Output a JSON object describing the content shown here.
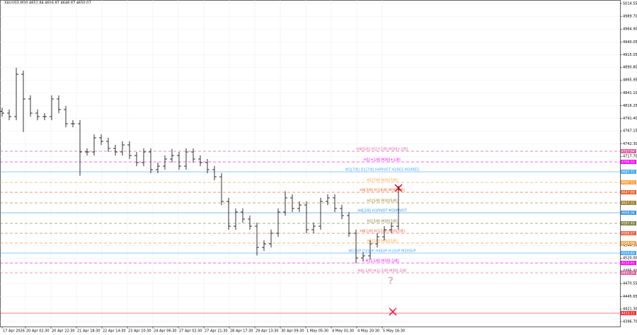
{
  "chart_data": {
    "type": "ohlc",
    "title": "XAUUSD,M30 4652.84 4656.87 4648.87 4650.07",
    "color": "#000000",
    "grid": true,
    "x": [
      0,
      1,
      2,
      3,
      4,
      5,
      6,
      7,
      8,
      9,
      10,
      11,
      12,
      13,
      14,
      15,
      16,
      17,
      18,
      19,
      20,
      21,
      22,
      23,
      24,
      25,
      26,
      27,
      28,
      29,
      30,
      31,
      32,
      33,
      34,
      35,
      36,
      37,
      38,
      39,
      40,
      41,
      42,
      43,
      44,
      45,
      46,
      47,
      48,
      49,
      50,
      51,
      52,
      53,
      54,
      55,
      56
    ],
    "open": [
      4805.0,
      4801.7,
      4794.9,
      4877.2,
      4829.2,
      4801.7,
      4794.9,
      4794.9,
      4829.2,
      4808.6,
      4781.1,
      4781.1,
      4726.2,
      4726.2,
      4753.7,
      4746.8,
      4733.1,
      4726.2,
      4739.9,
      4719.3,
      4705.6,
      4726.2,
      4691.9,
      4698.7,
      4712.5,
      4719.3,
      4698.7,
      4726.2,
      4712.5,
      4705.6,
      4691.9,
      4678.1,
      4630.1,
      4582.0,
      4609.5,
      4595.8,
      4582.0,
      4540.8,
      4547.7,
      4568.3,
      4609.5,
      4637.0,
      4616.4,
      4623.2,
      4575.2,
      4582.0,
      4630.1,
      4637.0,
      4616.4,
      4602.6,
      4568.3,
      4520.3,
      4524.4,
      4547.7,
      4561.4,
      4575.2,
      4582.0
    ],
    "high": [
      4812.0,
      4808.7,
      4890.0,
      4884.2,
      4836.2,
      4808.7,
      4801.9,
      4836.2,
      4836.2,
      4815.6,
      4788.1,
      4788.1,
      4733.2,
      4760.7,
      4760.7,
      4753.8,
      4740.1,
      4746.9,
      4746.9,
      4726.3,
      4733.2,
      4733.2,
      4705.7,
      4719.5,
      4732.0,
      4726.3,
      4733.2,
      4733.2,
      4719.5,
      4712.6,
      4698.9,
      4685.1,
      4637.1,
      4616.5,
      4616.5,
      4602.8,
      4589.0,
      4554.7,
      4575.3,
      4616.5,
      4650.0,
      4644.0,
      4630.2,
      4630.2,
      4589.0,
      4637.1,
      4644.0,
      4644.0,
      4623.4,
      4609.6,
      4575.3,
      4531.4,
      4554.7,
      4568.4,
      4582.2,
      4589.0,
      4660.4
    ],
    "low": [
      4794.7,
      4787.9,
      4787.9,
      4765.0,
      4794.7,
      4787.9,
      4787.9,
      4787.9,
      4801.6,
      4774.1,
      4774.1,
      4680.0,
      4719.2,
      4719.2,
      4739.8,
      4726.1,
      4719.2,
      4719.2,
      4712.3,
      4698.6,
      4698.6,
      4684.9,
      4684.9,
      4691.7,
      4705.5,
      4691.7,
      4691.7,
      4705.5,
      4698.6,
      4684.9,
      4671.1,
      4623.1,
      4575.0,
      4575.0,
      4588.8,
      4575.0,
      4525.0,
      4533.8,
      4540.7,
      4561.3,
      4602.5,
      4609.4,
      4609.4,
      4568.2,
      4568.2,
      4575.0,
      4623.1,
      4609.4,
      4595.6,
      4561.3,
      4510.0,
      4513.3,
      4517.4,
      4540.7,
      4554.4,
      4568.2,
      4575.0
    ],
    "close": [
      4801.7,
      4794.9,
      4877.2,
      4829.2,
      4801.7,
      4794.9,
      4794.9,
      4829.2,
      4808.6,
      4781.1,
      4781.1,
      4726.2,
      4726.2,
      4753.7,
      4746.8,
      4733.1,
      4726.2,
      4739.9,
      4719.3,
      4705.6,
      4726.2,
      4691.9,
      4698.7,
      4712.5,
      4719.3,
      4698.7,
      4726.2,
      4712.5,
      4705.6,
      4691.9,
      4678.1,
      4630.1,
      4582.0,
      4609.5,
      4595.8,
      4582.0,
      4540.8,
      4547.7,
      4568.3,
      4609.5,
      4637.0,
      4616.4,
      4623.2,
      4575.2,
      4582.0,
      4630.1,
      4637.0,
      4616.4,
      4602.6,
      4568.3,
      4520.3,
      4524.4,
      4547.7,
      4561.4,
      4575.2,
      4582.0,
      4653.4
    ],
    "xlim": [
      -0.3,
      87.3
    ],
    "xticks": [
      {
        "value": 0,
        "label": "17 Apr 2026"
      },
      {
        "value": 3.3,
        "label": "20 Apr 02:30"
      },
      {
        "value": 6.9,
        "label": "20 Apr 22:30"
      },
      {
        "value": 10.5,
        "label": "21 Apr 18:30"
      },
      {
        "value": 14.1,
        "label": "22 Apr 14:30"
      },
      {
        "value": 17.7,
        "label": "23 Apr 10:30"
      },
      {
        "value": 21.3,
        "label": "24 Apr 06:30"
      },
      {
        "value": 24.9,
        "label": "27 Apr 02:30"
      },
      {
        "value": 28.5,
        "label": "27 Apr 21:30"
      },
      {
        "value": 32.1,
        "label": "28 Apr 17:30"
      },
      {
        "value": 35.7,
        "label": "29 Apr 13:30"
      },
      {
        "value": 39.3,
        "label": "30 Apr 09:30"
      },
      {
        "value": 42.9,
        "label": "1 May 05:30"
      },
      {
        "value": 46.5,
        "label": "4 May 01:30"
      },
      {
        "value": 50.1,
        "label": "4 May 20:30"
      },
      {
        "value": 53.7,
        "label": "5 May 16:30"
      }
    ],
    "ylim": [
      4387.1,
      5021.4
    ],
    "yticks": [
      {
        "value": 5014.55,
        "label": "5014.55"
      },
      {
        "value": 4989.7,
        "label": "4989.70"
      },
      {
        "value": 4964.9,
        "label": "4964.90"
      },
      {
        "value": 4940.05,
        "label": "4940.05"
      },
      {
        "value": 4915.05,
        "label": "4915.05"
      },
      {
        "value": 4890.8,
        "label": "4890.80"
      },
      {
        "value": 4865.95,
        "label": "4865.95"
      },
      {
        "value": 4841.1,
        "label": "4841.10"
      },
      {
        "value": 4816.25,
        "label": "4816.25"
      },
      {
        "value": 4791.4,
        "label": "4791.40"
      },
      {
        "value": 4767.15,
        "label": "4767.15"
      },
      {
        "value": 4742.3,
        "label": "4742.30"
      },
      {
        "value": 4717.7,
        "label": "4717.70"
      },
      {
        "value": 4544.9,
        "label": "4544.90"
      },
      {
        "value": 4520.0,
        "label": "4520.00"
      },
      {
        "value": 4495.4,
        "label": "4495.40"
      },
      {
        "value": 4470.55,
        "label": "4470.55"
      },
      {
        "value": 4445.65,
        "label": "4445.65"
      },
      {
        "value": 4421.3,
        "label": "4421.30"
      },
      {
        "value": 4396.7,
        "label": "4396.70"
      }
    ],
    "levels": [
      {
        "label": "H4[5/8] H1[+2/8] M30[+2/8]",
        "price": 4727.64,
        "color": "#e060a0",
        "dashed": true
      },
      {
        "label": "H1[+1/8] M30[+1/8]",
        "price": 4706.93,
        "color": "#ff00ff",
        "dashed": true
      },
      {
        "label": "W1[7/8] D1[7/8] H4PIVOT H1RES M30RES",
        "price": 4687.71,
        "color": "#4aa8ff",
        "dashed": false
      },
      {
        "label": "H1[7/8] M30[7/8]",
        "price": 4667.12,
        "color": "#ffa040",
        "dashed": true
      },
      {
        "label": "H4[3/8] H1[6/8] M30[6/8]",
        "price": 4647.89,
        "color": "#e8602a",
        "dashed": true
      },
      {
        "label": "H1[5/8] M30[5/8]",
        "price": 4627.31,
        "color": "#a08030",
        "dashed": true
      },
      {
        "label": "H4[2/8] H1PIVOT M30PIVOT",
        "price": 4608.08,
        "color": "#3c96e0",
        "dashed": false
      },
      {
        "label": "H1[3/8] M30[3/8]",
        "price": 4587.49,
        "color": "#808040",
        "dashed": true
      },
      {
        "label": "H4[1/8] H1[2/8] M30[2/8]",
        "price": 4568.27,
        "color": "#f06040",
        "dashed": true
      },
      {
        "label": "H1[1/8] M30[1/8]",
        "price": 4549.06,
        "color": "#ffa040",
        "dashed": true
      },
      {
        "label": "W1SUP D1SUP H4SUP H1SUP M30SUP",
        "price": 4529.83,
        "color": "#4aa8ff",
        "dashed": false
      },
      {
        "label": "H1[-1/8] M30[-1/8]",
        "price": 4510.61,
        "color": "#ff00ff",
        "dashed": true
      },
      {
        "label": "H4[-1/8] H1[-2/8] M30[-2/8]",
        "price": 4491.39,
        "color": "#e060a0",
        "dashed": true
      },
      {
        "price": 4413.11,
        "color": "#ff3030",
        "dashed": false
      }
    ]
  }
}
